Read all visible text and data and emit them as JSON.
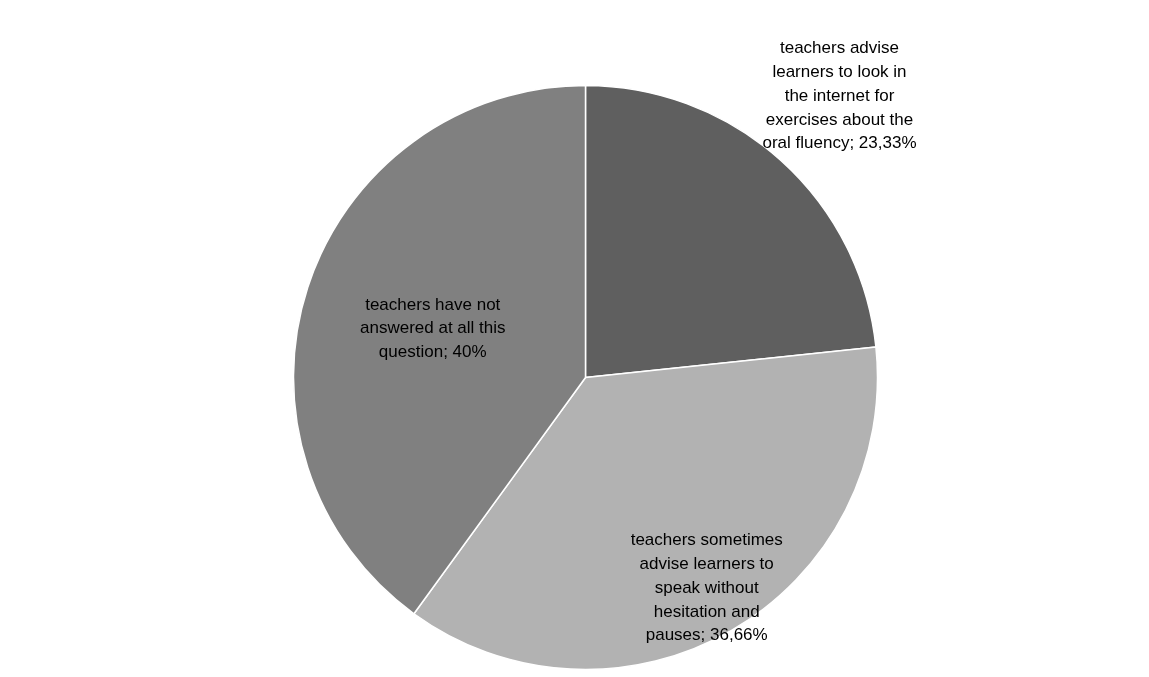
{
  "chart_data": {
    "type": "pie",
    "categories": [
      "teachers advise learners to look in the internet for exercises about the oral fluency",
      "teachers sometimes advise learners to speak without hesitation and pauses",
      "teachers have not answered at all this question"
    ],
    "values": [
      23.33,
      36.66,
      40
    ],
    "colors": [
      "#5f5f5f",
      "#b2b2b2",
      "#808080"
    ],
    "value_labels": [
      "23,33%",
      "36,66%",
      "40%"
    ]
  }
}
